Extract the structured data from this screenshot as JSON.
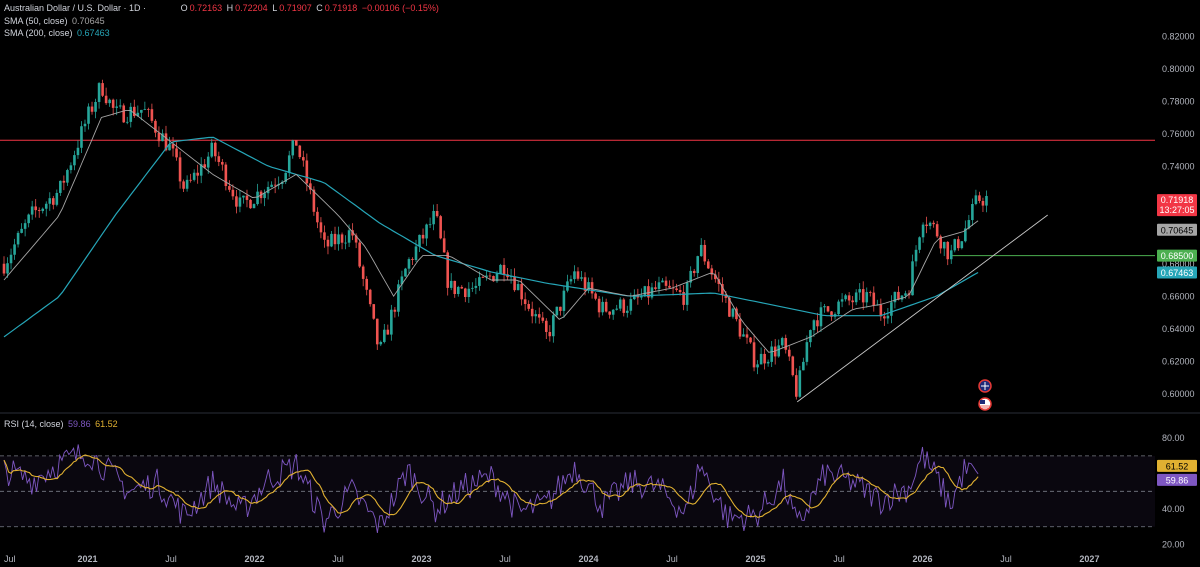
{
  "header": {
    "symbol": "Australian Dollar / U.S. Dollar · 1D ·",
    "open_label": "O",
    "open": "0.72163",
    "high_label": "H",
    "high": "0.72204",
    "low_label": "L",
    "low": "0.71907",
    "close_label": "C",
    "close": "0.71918",
    "change": "−0.00106 (−0.15%)",
    "sma50_label": "SMA (50, close)",
    "sma50_value": "0.70645",
    "sma200_label": "SMA (200, close)",
    "sma200_value": "0.67463"
  },
  "rsi_header": {
    "label": "RSI (14, close)",
    "rsi": "59.86",
    "ma": "61.52"
  },
  "colors": {
    "up": "#26a69a",
    "down": "#ef5350",
    "sma50": "#a5a5a5",
    "sma200": "#26a6b8",
    "rsi": "#7e57c2",
    "rsi_ma": "#e0b031",
    "resistance": "#f23645",
    "support": "#4caf50"
  },
  "chart_data": [
    {
      "type": "candlestick",
      "x_ticks": [
        "Jul",
        "2021",
        "Jul",
        "2022",
        "Jul",
        "2023",
        "Jul",
        "2024",
        "Jul",
        "2025",
        "Jul",
        "2026",
        "Jul",
        "2027"
      ],
      "y_ticks": [
        "0.82000",
        "0.80000",
        "0.78000",
        "0.76000",
        "0.74000",
        "0.72000",
        "0.70000",
        "0.68000",
        "0.66000",
        "0.64000",
        "0.62000",
        "0.60000"
      ],
      "ylim": [
        0.59,
        0.83
      ],
      "price_anchors": [
        [
          "2020-07",
          0.68
        ],
        [
          "2020-09",
          0.71
        ],
        [
          "2020-11",
          0.725
        ],
        [
          "2021-01",
          0.77
        ],
        [
          "2021-02",
          0.79
        ],
        [
          "2021-03",
          0.772
        ],
        [
          "2021-05",
          0.775
        ],
        [
          "2021-07",
          0.75
        ],
        [
          "2021-08",
          0.725
        ],
        [
          "2021-10",
          0.75
        ],
        [
          "2021-12",
          0.715
        ],
        [
          "2022-03",
          0.735
        ],
        [
          "2022-04",
          0.755
        ],
        [
          "2022-06",
          0.69
        ],
        [
          "2022-08",
          0.7
        ],
        [
          "2022-10",
          0.625
        ],
        [
          "2022-12",
          0.68
        ],
        [
          "2023-02",
          0.71
        ],
        [
          "2023-03",
          0.665
        ],
        [
          "2023-05",
          0.665
        ],
        [
          "2023-07",
          0.68
        ],
        [
          "2023-10",
          0.635
        ],
        [
          "2023-12",
          0.675
        ],
        [
          "2024-02",
          0.652
        ],
        [
          "2024-04",
          0.655
        ],
        [
          "2024-06",
          0.665
        ],
        [
          "2024-08",
          0.66
        ],
        [
          "2024-09",
          0.69
        ],
        [
          "2024-11",
          0.655
        ],
        [
          "2025-01",
          0.62
        ],
        [
          "2025-03",
          0.63
        ],
        [
          "2025-04",
          0.6
        ],
        [
          "2025-05",
          0.645
        ],
        [
          "2025-07",
          0.655
        ],
        [
          "2025-09",
          0.66
        ],
        [
          "2025-10",
          0.65
        ],
        [
          "2025-12",
          0.665
        ],
        [
          "2026-01",
          0.71
        ],
        [
          "2026-02",
          0.7
        ],
        [
          "2026-03",
          0.685
        ],
        [
          "2026-04",
          0.7
        ],
        [
          "2026-05",
          0.72
        ]
      ],
      "sma50_anchors": [
        [
          "2020-07",
          0.67
        ],
        [
          "2020-11",
          0.71
        ],
        [
          "2021-02",
          0.77
        ],
        [
          "2021-04",
          0.775
        ],
        [
          "2021-07",
          0.755
        ],
        [
          "2021-10",
          0.735
        ],
        [
          "2022-01",
          0.72
        ],
        [
          "2022-04",
          0.735
        ],
        [
          "2022-07",
          0.71
        ],
        [
          "2022-09",
          0.69
        ],
        [
          "2022-11",
          0.66
        ],
        [
          "2023-01",
          0.685
        ],
        [
          "2023-03",
          0.685
        ],
        [
          "2023-06",
          0.67
        ],
        [
          "2023-08",
          0.67
        ],
        [
          "2023-11",
          0.645
        ],
        [
          "2024-01",
          0.665
        ],
        [
          "2024-04",
          0.66
        ],
        [
          "2024-07",
          0.665
        ],
        [
          "2024-10",
          0.675
        ],
        [
          "2024-12",
          0.645
        ],
        [
          "2025-02",
          0.625
        ],
        [
          "2025-05",
          0.635
        ],
        [
          "2025-08",
          0.652
        ],
        [
          "2025-10",
          0.655
        ],
        [
          "2025-12",
          0.66
        ],
        [
          "2026-02",
          0.695
        ],
        [
          "2026-04",
          0.7
        ],
        [
          "2026-05",
          0.70645
        ]
      ],
      "sma200_anchors": [
        [
          "2020-07",
          0.635
        ],
        [
          "2020-11",
          0.66
        ],
        [
          "2021-03",
          0.71
        ],
        [
          "2021-07",
          0.755
        ],
        [
          "2021-10",
          0.758
        ],
        [
          "2022-02",
          0.74
        ],
        [
          "2022-06",
          0.73
        ],
        [
          "2022-10",
          0.705
        ],
        [
          "2023-02",
          0.685
        ],
        [
          "2023-06",
          0.675
        ],
        [
          "2023-10",
          0.668
        ],
        [
          "2024-04",
          0.66
        ],
        [
          "2024-10",
          0.662
        ],
        [
          "2025-02",
          0.655
        ],
        [
          "2025-06",
          0.648
        ],
        [
          "2025-10",
          0.648
        ],
        [
          "2026-02",
          0.66
        ],
        [
          "2026-05",
          0.67463
        ]
      ],
      "horizontal_levels": [
        {
          "value": 0.756,
          "label": "0.75600",
          "color": "#f23645"
        },
        {
          "value": 0.685,
          "label": "0.68500",
          "color": "#4caf50"
        }
      ],
      "trendline": {
        "from": [
          "2025-04",
          0.595
        ],
        "to": [
          "2026-10",
          0.71
        ]
      },
      "price_tags": [
        {
          "label": "0.71918",
          "sub": "13:27:05",
          "value": 0.71918,
          "color": "#f23645"
        },
        {
          "label": "0.70645",
          "value": 0.70645,
          "color": "#a5a5a5"
        },
        {
          "label": "0.68500",
          "value": 0.685,
          "color": "#4caf50"
        },
        {
          "label": "0.67463",
          "value": 0.67463,
          "color": "#26a6b8"
        }
      ]
    },
    {
      "type": "line",
      "name": "RSI (14, close)",
      "y_ticks": [
        "80.00",
        "40.00",
        "20.00"
      ],
      "ylim": [
        18,
        88
      ],
      "bands": {
        "upper": 70,
        "middle": 50,
        "lower": 30
      },
      "rsi_anchors": [
        [
          "2020-07",
          62
        ],
        [
          "2020-09",
          56
        ],
        [
          "2020-11",
          66
        ],
        [
          "2021-01",
          72
        ],
        [
          "2021-02",
          65
        ],
        [
          "2021-04",
          50
        ],
        [
          "2021-06",
          55
        ],
        [
          "2021-08",
          36
        ],
        [
          "2021-10",
          55
        ],
        [
          "2021-12",
          38
        ],
        [
          "2022-02",
          57
        ],
        [
          "2022-04",
          65
        ],
        [
          "2022-06",
          33
        ],
        [
          "2022-08",
          50
        ],
        [
          "2022-10",
          30
        ],
        [
          "2022-12",
          62
        ],
        [
          "2023-02",
          40
        ],
        [
          "2023-04",
          52
        ],
        [
          "2023-06",
          58
        ],
        [
          "2023-08",
          38
        ],
        [
          "2023-10",
          43
        ],
        [
          "2023-12",
          64
        ],
        [
          "2024-02",
          42
        ],
        [
          "2024-04",
          55
        ],
        [
          "2024-06",
          52
        ],
        [
          "2024-08",
          38
        ],
        [
          "2024-09",
          65
        ],
        [
          "2024-11",
          35
        ],
        [
          "2025-01",
          36
        ],
        [
          "2025-03",
          55
        ],
        [
          "2025-04",
          30
        ],
        [
          "2025-06",
          60
        ],
        [
          "2025-08",
          55
        ],
        [
          "2025-10",
          45
        ],
        [
          "2025-12",
          52
        ],
        [
          "2026-01",
          70
        ],
        [
          "2026-02",
          58
        ],
        [
          "2026-03",
          42
        ],
        [
          "2026-04",
          62
        ],
        [
          "2026-05",
          59.86
        ]
      ],
      "price_tags": [
        {
          "label": "61.52",
          "value": 61.52,
          "color": "#e0b031"
        },
        {
          "label": "59.86",
          "value": 59.86,
          "color": "#7e57c2"
        }
      ]
    }
  ]
}
